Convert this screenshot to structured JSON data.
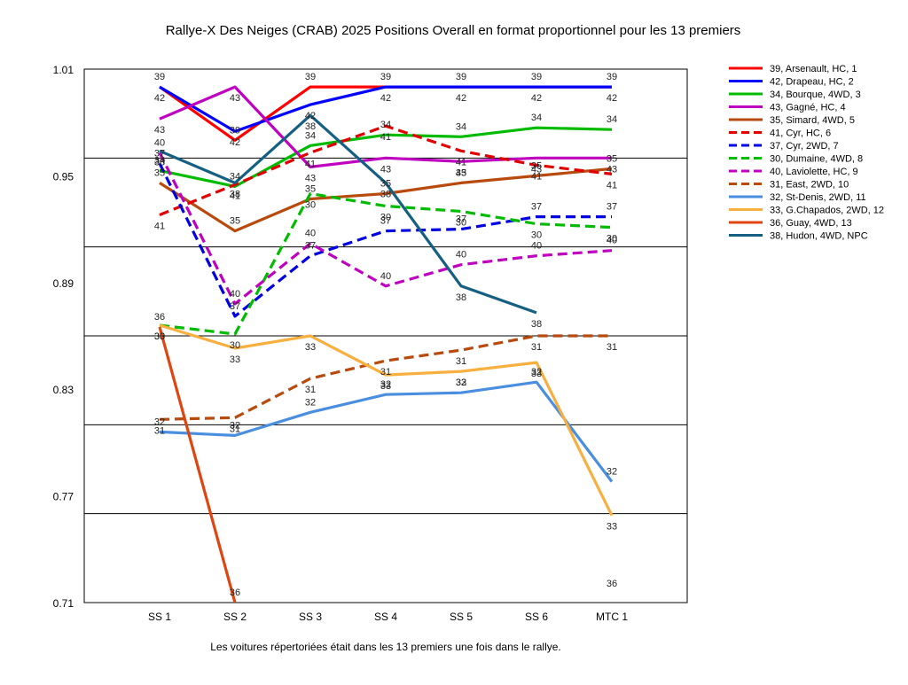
{
  "chart_data": {
    "type": "line",
    "title": "Rallye-X Des Neiges (CRAB) 2025  Positions Overall en format proportionnel pour les 13 premiers",
    "footnote": "Les voitures répertoriées était dans les 13 premiers une fois dans le rallye.",
    "categories": [
      "SS 1",
      "SS 2",
      "SS 3",
      "SS 4",
      "SS 5",
      "SS 6",
      "MTC 1"
    ],
    "y_ticks": [
      "1.01",
      "0.95",
      "0.89",
      "0.83",
      "0.77",
      "0.71"
    ],
    "ylim": [
      0.71,
      1.01
    ],
    "grid": true,
    "legend_position": "right",
    "series": [
      {
        "name": "39, Arsenault, HC, 1",
        "label": "39",
        "color": "#ff0000",
        "dash": "solid",
        "values": [
          1.0,
          0.97,
          1.0,
          1.0,
          1.0,
          1.0,
          1.0
        ]
      },
      {
        "name": "42, Drapeau, HC, 2",
        "label": "42",
        "color": "#0000ff",
        "dash": "solid",
        "values": [
          1.0,
          0.975,
          0.99,
          1.0,
          1.0,
          1.0,
          1.0
        ]
      },
      {
        "name": "34, Bourque, 4WD, 3",
        "label": "34",
        "color": "#00bb00",
        "dash": "solid",
        "values": [
          0.953,
          0.944,
          0.967,
          0.973,
          0.972,
          0.977,
          0.976
        ]
      },
      {
        "name": "43, Gagné, HC, 4",
        "label": "43",
        "color": "#c000c0",
        "dash": "solid",
        "values": [
          0.982,
          1.0,
          0.955,
          0.96,
          0.958,
          0.96,
          0.96
        ]
      },
      {
        "name": "35, Simard, 4WD, 5",
        "label": "35",
        "color": "#b84a0e",
        "dash": "solid",
        "values": [
          0.946,
          0.919,
          0.937,
          0.94,
          0.946,
          0.95,
          0.954
        ]
      },
      {
        "name": "41, Cyr, HC, 6",
        "label": "41",
        "color": "#e00000",
        "dash": "dash",
        "values": [
          0.928,
          0.945,
          0.963,
          0.978,
          0.964,
          0.956,
          0.951
        ]
      },
      {
        "name": "37, Cyr, 2WD, 7",
        "label": "37",
        "color": "#0000e0",
        "dash": "dash",
        "values": [
          0.957,
          0.871,
          0.905,
          0.919,
          0.92,
          0.927,
          0.927
        ]
      },
      {
        "name": "30, Dumaine, 4WD, 8",
        "label": "30",
        "color": "#00bb00",
        "dash": "dash",
        "values": [
          0.866,
          0.861,
          0.94,
          0.933,
          0.93,
          0.923,
          0.921
        ]
      },
      {
        "name": "40, Laviolette, HC, 9",
        "label": "40",
        "color": "#c000c0",
        "dash": "dash",
        "values": [
          0.963,
          0.878,
          0.912,
          0.888,
          0.9,
          0.905,
          0.908
        ]
      },
      {
        "name": "31, East, 2WD, 10",
        "label": "31",
        "color": "#b84a0e",
        "dash": "dash",
        "values": [
          0.813,
          0.814,
          0.836,
          0.846,
          0.852,
          0.86,
          0.86
        ]
      },
      {
        "name": "32, St-Denis, 2WD, 11",
        "label": "32",
        "color": "#4a8ee0",
        "dash": "solid",
        "values": [
          0.806,
          0.804,
          0.817,
          0.827,
          0.828,
          0.834,
          0.778
        ]
      },
      {
        "name": "33, G.Chapados, 2WD, 12",
        "label": "33",
        "color": "#f7b040",
        "dash": "solid",
        "values": [
          0.866,
          0.853,
          0.86,
          0.838,
          0.84,
          0.845,
          0.759
        ]
      },
      {
        "name": "36, Guay, 4WD, 13",
        "label": "36",
        "color": "#e04410",
        "dash": "solid",
        "values": [
          0.865,
          0.71,
          null,
          null,
          null,
          null,
          0.715
        ]
      },
      {
        "name": "38, Hudon, 4WD,  NPC",
        "label": "38",
        "color": "#156082",
        "dash": "solid",
        "values": [
          0.964,
          0.946,
          0.984,
          0.946,
          0.888,
          0.873,
          null
        ]
      }
    ]
  }
}
